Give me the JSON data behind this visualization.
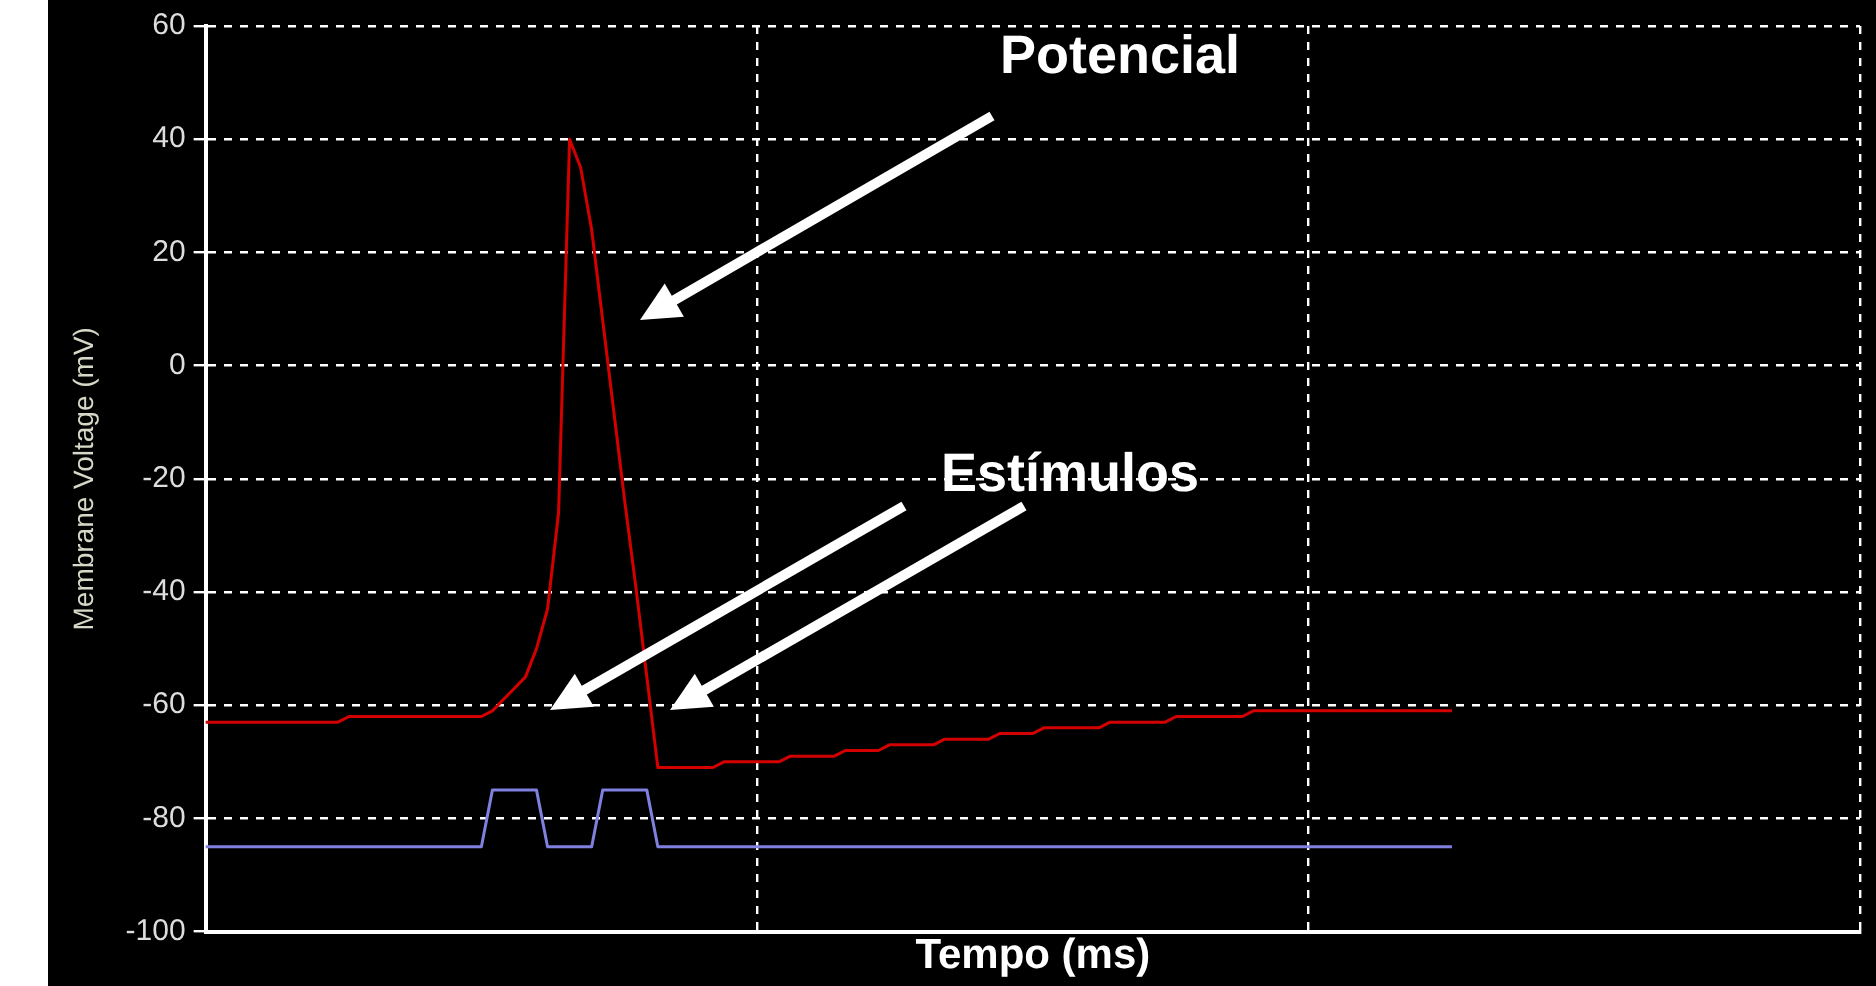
{
  "chart_data": {
    "type": "line",
    "xlabel": "Tempo (ms)",
    "ylabel": "Membrane Voltage (mV)",
    "annotations": [
      "Potencial",
      "Estímulos"
    ],
    "categories": [
      null,
      null,
      null,
      null,
      null,
      null,
      null,
      null,
      null,
      null,
      null,
      null,
      null,
      null,
      null,
      null,
      null,
      null,
      null,
      null,
      null,
      null,
      null,
      null,
      null,
      null,
      null,
      null,
      null,
      null,
      null,
      null,
      null,
      null,
      null,
      null,
      null,
      null,
      null,
      null,
      null,
      null,
      null,
      null,
      null,
      null,
      null,
      null,
      null,
      null,
      null,
      null,
      null,
      null,
      null,
      null,
      null,
      null,
      null,
      null,
      null,
      null,
      null,
      null,
      null,
      null,
      null,
      null,
      null,
      null,
      null,
      null,
      null,
      null,
      null,
      null,
      null,
      null,
      null,
      null,
      null,
      null,
      null,
      null,
      null,
      null,
      null,
      null,
      null,
      null,
      null,
      null,
      null,
      null,
      null,
      null,
      null,
      null,
      null,
      null,
      null,
      null,
      null,
      null,
      null,
      null,
      null,
      null,
      null,
      null,
      null,
      null,
      null,
      null,
      null,
      null,
      null,
      null,
      null,
      null,
      null,
      null,
      null,
      null,
      null,
      null,
      null,
      null,
      null,
      null,
      null,
      null,
      null,
      null,
      null,
      null,
      null,
      null,
      null,
      null,
      null,
      null,
      null,
      null,
      null,
      null,
      null,
      null,
      null,
      null,
      null
    ],
    "series": [
      {
        "color": "#d40000",
        "values": [
          -63,
          -63,
          -63,
          -63,
          -63,
          -63,
          -63,
          -63,
          -63,
          -63,
          -63,
          -63,
          -63,
          -62,
          -62,
          -62,
          -62,
          -62,
          -62,
          -62,
          -62,
          -62,
          -62,
          -62,
          -62,
          -62,
          -61,
          -59,
          -57,
          -55,
          -50,
          -43,
          -26,
          40,
          35,
          24,
          8,
          -8,
          -24,
          -39,
          -55,
          -71,
          -71,
          -71,
          -71,
          -71,
          -71,
          -70,
          -70,
          -70,
          -70,
          -70,
          -70,
          -69,
          -69,
          -69,
          -69,
          -69,
          -68,
          -68,
          -68,
          -68,
          -67,
          -67,
          -67,
          -67,
          -67,
          -66,
          -66,
          -66,
          -66,
          -66,
          -65,
          -65,
          -65,
          -65,
          -64,
          -64,
          -64,
          -64,
          -64,
          -64,
          -63,
          -63,
          -63,
          -63,
          -63,
          -63,
          -62,
          -62,
          -62,
          -62,
          -62,
          -62,
          -62,
          -61,
          -61,
          -61,
          -61,
          -61,
          -61,
          -61,
          -61,
          -61,
          -61,
          -61,
          -61,
          -61,
          -61,
          -61,
          -61,
          -61,
          -61,
          -61,
          null,
          null,
          null,
          null,
          null,
          null,
          null,
          null,
          null,
          null,
          null,
          null,
          null,
          null,
          null,
          null,
          null,
          null,
          null,
          null,
          null,
          null,
          null,
          null,
          null,
          null,
          null,
          null,
          null,
          null,
          null,
          null,
          null,
          null,
          null,
          null,
          null
        ]
      },
      {
        "color": "#8080e0",
        "values": [
          -85,
          -85,
          -85,
          -85,
          -85,
          -85,
          -85,
          -85,
          -85,
          -85,
          -85,
          -85,
          -85,
          -85,
          -85,
          -85,
          -85,
          -85,
          -85,
          -85,
          -85,
          -85,
          -85,
          -85,
          -85,
          -85,
          -75,
          -75,
          -75,
          -75,
          -75,
          -85,
          -85,
          -85,
          -85,
          -85,
          -75,
          -75,
          -75,
          -75,
          -75,
          -85,
          -85,
          -85,
          -85,
          -85,
          -85,
          -85,
          -85,
          -85,
          -85,
          -85,
          -85,
          -85,
          -85,
          -85,
          -85,
          -85,
          -85,
          -85,
          -85,
          -85,
          -85,
          -85,
          -85,
          -85,
          -85,
          -85,
          -85,
          -85,
          -85,
          -85,
          -85,
          -85,
          -85,
          -85,
          -85,
          -85,
          -85,
          -85,
          -85,
          -85,
          -85,
          -85,
          -85,
          -85,
          -85,
          -85,
          -85,
          -85,
          -85,
          -85,
          -85,
          -85,
          -85,
          -85,
          -85,
          -85,
          -85,
          -85,
          -85,
          -85,
          -85,
          -85,
          -85,
          -85,
          -85,
          -85,
          -85,
          -85,
          -85,
          -85,
          -85,
          -85,
          null,
          null,
          null,
          null,
          null,
          null,
          null,
          null,
          null,
          null,
          null,
          null,
          null,
          null,
          null,
          null,
          null,
          null,
          null,
          null,
          null,
          null,
          null,
          null,
          null,
          null,
          null,
          null,
          null,
          null,
          null,
          null,
          null,
          null,
          null,
          null,
          null
        ]
      }
    ],
    "ylim": [
      -100,
      60
    ],
    "yticks": [
      -100,
      -80,
      -60,
      -40,
      -20,
      0,
      20,
      40,
      60
    ],
    "grid": true,
    "legend": false,
    "marker": "none",
    "tick_labels": "y"
  }
}
